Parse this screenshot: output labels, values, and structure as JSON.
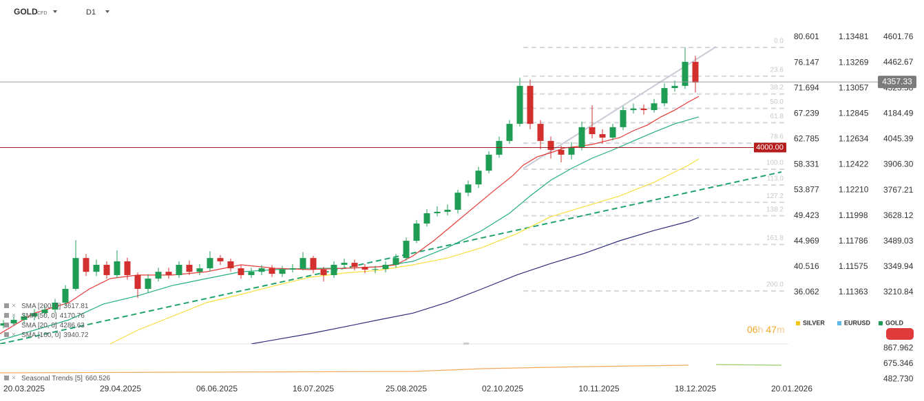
{
  "header": {
    "symbol": "GOLD",
    "kind": "CFD",
    "timeframe": "D1"
  },
  "chart_data": {
    "type": "candlestick",
    "x": [
      -6,
      -3,
      0,
      3,
      6,
      9,
      12,
      15,
      18,
      21,
      24,
      27,
      30,
      33,
      36,
      39,
      42,
      45,
      48,
      51,
      54,
      57,
      60,
      63,
      66,
      69,
      72,
      75,
      78,
      81,
      84,
      87,
      90,
      93,
      96,
      99,
      102,
      105,
      108,
      111,
      114,
      117,
      120,
      123,
      126,
      129,
      132,
      135,
      138,
      141,
      144,
      147,
      150,
      153,
      156,
      159,
      162,
      165,
      168,
      171,
      174,
      177,
      180,
      183,
      186,
      189,
      192,
      195
    ],
    "open": [
      3030,
      3042,
      3061,
      3080,
      3098,
      3117,
      3155,
      3230,
      3398,
      3323,
      3361,
      3305,
      3380,
      3305,
      3230,
      3286,
      3323,
      3305,
      3361,
      3323,
      3342,
      3398,
      3380,
      3342,
      3305,
      3323,
      3342,
      3312,
      3335,
      3342,
      3398,
      3335,
      3305,
      3361,
      3372,
      3350,
      3335,
      3338,
      3361,
      3398,
      3492,
      3586,
      3642,
      3650,
      3661,
      3754,
      3799,
      3874,
      3961,
      4036,
      4129,
      4336,
      4129,
      4036,
      3987,
      3961,
      3998,
      4111,
      4073,
      4054,
      4111,
      4204,
      4212,
      4204,
      4241,
      4324,
      4336,
      4467
    ],
    "high": [
      3060,
      3080,
      3095,
      3120,
      3140,
      3175,
      3250,
      3495,
      3420,
      3390,
      3380,
      3440,
      3400,
      3320,
      3310,
      3345,
      3345,
      3380,
      3385,
      3365,
      3435,
      3415,
      3395,
      3360,
      3345,
      3360,
      3360,
      3355,
      3365,
      3430,
      3410,
      3350,
      3380,
      3395,
      3390,
      3365,
      3355,
      3380,
      3420,
      3510,
      3605,
      3665,
      3680,
      3690,
      3770,
      3820,
      3895,
      3980,
      4060,
      4150,
      4380,
      4370,
      4150,
      4060,
      4010,
      4030,
      4140,
      4230,
      4100,
      4130,
      4225,
      4240,
      4235,
      4265,
      4350,
      4365,
      4545,
      4500
    ],
    "low": [
      3015,
      3030,
      3040,
      3060,
      3085,
      3100,
      3140,
      3220,
      3300,
      3300,
      3285,
      3290,
      3280,
      3180,
      3210,
      3270,
      3285,
      3290,
      3305,
      3305,
      3325,
      3360,
      3325,
      3285,
      3290,
      3305,
      3295,
      3295,
      3320,
      3330,
      3315,
      3270,
      3290,
      3345,
      3330,
      3315,
      3315,
      3320,
      3345,
      3385,
      3480,
      3570,
      3625,
      3630,
      3640,
      3735,
      3780,
      3860,
      3945,
      4020,
      4115,
      4100,
      3990,
      3940,
      3920,
      3935,
      3985,
      4050,
      4020,
      4040,
      4095,
      4185,
      4180,
      4190,
      4225,
      4305,
      4320,
      4300
    ],
    "close": [
      3042,
      3061,
      3080,
      3098,
      3117,
      3155,
      3230,
      3398,
      3323,
      3361,
      3305,
      3380,
      3305,
      3230,
      3286,
      3323,
      3305,
      3361,
      3323,
      3342,
      3398,
      3380,
      3342,
      3305,
      3323,
      3342,
      3312,
      3335,
      3342,
      3398,
      3335,
      3305,
      3361,
      3372,
      3350,
      3335,
      3338,
      3361,
      3398,
      3492,
      3586,
      3642,
      3650,
      3661,
      3754,
      3799,
      3874,
      3961,
      4036,
      4129,
      4336,
      4129,
      4036,
      3987,
      3961,
      3998,
      4111,
      4073,
      4054,
      4111,
      4204,
      4212,
      4204,
      4241,
      4324,
      4336,
      4467,
      4354
    ],
    "up_color": "#1f9d55",
    "down_color": "#d32f2f",
    "xlim": [
      -7,
      224
    ],
    "xticks": [
      {
        "value": 0,
        "label": "20.03.2025"
      },
      {
        "value": 28,
        "label": "29.04.2025"
      },
      {
        "value": 56,
        "label": "06.06.2025"
      },
      {
        "value": 84,
        "label": "16.07.2025"
      },
      {
        "value": 111,
        "label": "25.08.2025"
      },
      {
        "value": 139,
        "label": "02.10.2025"
      },
      {
        "value": 167,
        "label": "10.11.2025"
      },
      {
        "value": 195,
        "label": "18.12.2025"
      },
      {
        "value": 223,
        "label": "20.01.2026"
      }
    ],
    "ylim": [
      2930,
      4654
    ],
    "yticks": [
      4601.76,
      4462.67,
      4323.58,
      4184.49,
      4045.39,
      {
        "value": 3906.3,
        "label": "3906.30"
      },
      3767.21,
      3628.12,
      3489.03,
      3349.94,
      3210.84
    ],
    "secondary_axes": [
      {
        "ylim": [
          27.05,
          82.28
        ],
        "yticks": [
          80.601,
          76.147,
          71.694,
          67.239,
          62.785,
          58.331,
          53.877,
          49.423,
          44.969,
          40.516,
          36.062
        ]
      },
      {
        "ylim": [
          1.10933,
          1.13561
        ],
        "yticks": [
          1.13481,
          1.13269,
          1.13057,
          1.12845,
          1.12634,
          1.12422,
          {
            "value": 1.1221,
            "label": "1.12210"
          },
          1.11998,
          1.11786,
          1.11575,
          1.11363
        ]
      }
    ],
    "legend": [
      {
        "name": "SILVER",
        "color": "#f2c414"
      },
      {
        "name": "EURUSD",
        "color": "#5cb8e6"
      },
      {
        "name": "GOLD",
        "color": "#1f9d55"
      }
    ],
    "sma": [
      {
        "label": "SMA [200, 0]",
        "value": 3617.81,
        "color": "#2c2c7a",
        "x": [
          66,
          83,
          93,
          103,
          113,
          123,
          133,
          143,
          153,
          163,
          173,
          183,
          193,
          196
        ],
        "values": [
          2930,
          2986,
          3023,
          3061,
          3098,
          3157,
          3230,
          3305,
          3368,
          3425,
          3492,
          3548,
          3597,
          3620
        ]
      },
      {
        "label": "SMA [50, 0]",
        "value": 4170.76,
        "color": "#22b07d",
        "x": [
          -7,
          3,
          13,
          23,
          33,
          43,
          53,
          63,
          73,
          83,
          93,
          103,
          113,
          123,
          133,
          141,
          147,
          153,
          159,
          165,
          171,
          177,
          183,
          189,
          196
        ],
        "values": [
          2949,
          3005,
          3061,
          3147,
          3192,
          3248,
          3286,
          3323,
          3335,
          3342,
          3342,
          3350,
          3380,
          3455,
          3548,
          3642,
          3736,
          3822,
          3886,
          3942,
          3987,
          4036,
          4084,
          4129,
          4167
        ]
      },
      {
        "label": "SMA [20, 0]",
        "value": 4286.63,
        "color": "#e53935",
        "x": [
          -7,
          3,
          13,
          19,
          25,
          33,
          43,
          53,
          63,
          73,
          83,
          93,
          103,
          108,
          113,
          119,
          125,
          131,
          137,
          142,
          145,
          149,
          153,
          157,
          161,
          165,
          169,
          173,
          177,
          181,
          185,
          189,
          193,
          196
        ],
        "values": [
          2986,
          3098,
          3155,
          3230,
          3286,
          3305,
          3305,
          3323,
          3361,
          3342,
          3335,
          3342,
          3350,
          3361,
          3410,
          3492,
          3586,
          3680,
          3773,
          3848,
          3904,
          3949,
          3972,
          3998,
          4006,
          4017,
          4036,
          4054,
          4092,
          4122,
          4167,
          4204,
          4249,
          4279
        ]
      },
      {
        "label": "SMA [100, 0]",
        "value": 3940.72,
        "color": "#f7e03c",
        "x": [
          25,
          33,
          43,
          53,
          63,
          73,
          83,
          93,
          103,
          113,
          123,
          133,
          143,
          153,
          163,
          173,
          183,
          193,
          196
        ],
        "values": [
          2930,
          3005,
          3080,
          3155,
          3200,
          3248,
          3293,
          3316,
          3331,
          3361,
          3398,
          3455,
          3530,
          3623,
          3680,
          3736,
          3811,
          3904,
          3938
        ]
      }
    ],
    "trendlines": [
      {
        "x": [
          -7,
          220
        ],
        "values": [
          2930,
          3867
        ],
        "color": "#1fa36a",
        "dashed": true
      },
      {
        "x": [
          145,
          201
        ],
        "values": [
          3886,
          4549
        ],
        "color": "#c9ccd6",
        "dashed": false
      }
    ],
    "fib": {
      "from_x": 145,
      "high": 4545.5,
      "low": 3882,
      "levels": [
        {
          "value": 0,
          "label": "0.0"
        },
        23.6,
        38.2,
        {
          "value": 50,
          "label": "50.0"
        },
        61.8,
        78.6,
        {
          "value": 100,
          "label": "100.0"
        },
        {
          "value": 113,
          "label": "113.0"
        },
        127.2,
        138.2,
        161.8,
        {
          "value": 200,
          "label": "200.0"
        }
      ]
    },
    "last_price": 4357.33,
    "level": {
      "value": 4000,
      "label": "4000.00"
    },
    "timer": {
      "hours": "06",
      "hours_unit": "h",
      "minutes": "47",
      "minutes_unit": "m"
    },
    "indicator": {
      "label": "Seasonal Trends [5]",
      "value": 660.526,
      "ylim": [
        281.5,
        923.6
      ],
      "yticks": [
        867.962,
        675.346,
        {
          "value": 482.73,
          "label": "482.730"
        }
      ],
      "color": "#f5a75a",
      "x": [
        -7,
        53,
        113,
        133,
        163,
        193
      ],
      "values": [
        564,
        573,
        581,
        615,
        641,
        658
      ],
      "forecast_color": "#9ccc65",
      "forecast_x": [
        201,
        220
      ],
      "forecast_values": [
        667,
        658
      ]
    }
  }
}
